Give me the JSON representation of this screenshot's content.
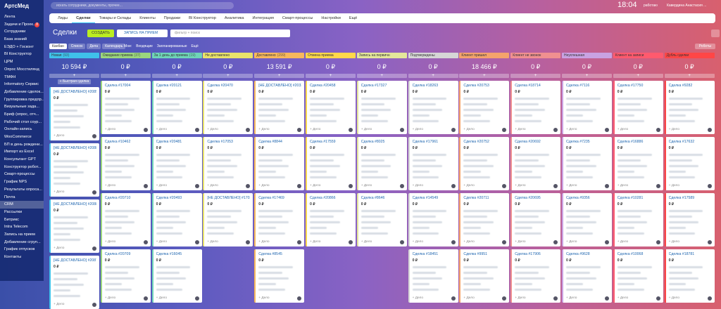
{
  "sidebar": {
    "logo": "АртсМед",
    "items": [
      {
        "label": "Лента"
      },
      {
        "label": "Задачи и Проек...",
        "badge": "8"
      },
      {
        "label": "Сотрудники"
      },
      {
        "label": "База знаний"
      },
      {
        "label": "ЕЭДО + Госконт"
      },
      {
        "label": "BI Конструктор"
      },
      {
        "label": "ЦРМ"
      },
      {
        "label": "Опрос Мосстилянд"
      },
      {
        "label": "ТМФН"
      },
      {
        "label": "Informatory Сервис"
      },
      {
        "label": "Добавление сделок..."
      },
      {
        "label": "Группировка предпр..."
      },
      {
        "label": "Визуальные зада..."
      },
      {
        "label": "Бриф (опрос, отч..."
      },
      {
        "label": "Рабочий стол соур..."
      },
      {
        "label": "Онлайн-запись"
      },
      {
        "label": "WooCommerce"
      },
      {
        "label": "БП в день рождени..."
      },
      {
        "label": "Импорт из Excel"
      },
      {
        "label": "Консультант GPT"
      },
      {
        "label": "Конструктор робот..."
      },
      {
        "label": "Смарт-процессы"
      },
      {
        "label": "График NPS"
      },
      {
        "label": "Результаты опроса..."
      },
      {
        "label": "Почта"
      },
      {
        "label": "CRM"
      },
      {
        "label": "Рассылки"
      },
      {
        "label": "Битрикс"
      },
      {
        "label": "Intra Telecom"
      },
      {
        "label": "Запись на прием"
      },
      {
        "label": "Добавление сгруп..."
      },
      {
        "label": "График отпусков"
      },
      {
        "label": "Контакты"
      }
    ]
  },
  "topbar": {
    "search": "искать сотрудники, документы, прочее...",
    "time": "18:04",
    "status": "работаю",
    "user": "Кавердина Анастасия ..."
  },
  "tabs": [
    "Лиды",
    "Сделки",
    "Товары и Склады",
    "Клиенты",
    "Продажи",
    "BI Конструктор",
    "Аналитика",
    "Интеграция",
    "Смарт-процессы",
    "Настройки",
    "Ещё"
  ],
  "toolbar": {
    "title": "Сделки",
    "create": "создать",
    "appointment": "запись на прием",
    "filter": "фильтр + поиск"
  },
  "views": [
    "Канбан",
    "Список",
    "Дела",
    "Календарь"
  ],
  "counters": {
    "label": "Мои:",
    "items": [
      "Входящие",
      "Запланированные",
      "Ещё"
    ]
  },
  "actions": [
    "Роботы"
  ],
  "quick_add": "+ Быстрая сделка",
  "card_action": "+ Дело",
  "columns": [
    {
      "name": "Новая",
      "count": "(93)",
      "color": "#3fc1ea",
      "sum": "10 594 ₽",
      "cards": [
        {
          "title": "[НЕ ДОСТАВЛЕНО] #20892",
          "amount": "0 ₽"
        },
        {
          "title": "[НЕ ДОСТАВЛЕНО] #20884",
          "amount": "0 ₽"
        },
        {
          "title": "[НЕ ДОСТАВЛЕНО] #20882",
          "amount": "0 ₽"
        },
        {
          "title": "[НЕ ДОСТАВЛЕНО] #20875",
          "amount": "0 ₽"
        }
      ]
    },
    {
      "name": "Ожидание приема",
      "count": "(37)",
      "color": "#9bd67e",
      "sum": "0 ₽",
      "cards": [
        {
          "title": "Сделка #17004",
          "amount": "0 ₽"
        },
        {
          "title": "Сделка #10462",
          "amount": "0 ₽"
        },
        {
          "title": "Сделка #20710",
          "amount": "0 ₽"
        },
        {
          "title": "Сделка #20709",
          "amount": "0 ₽"
        }
      ]
    },
    {
      "name": "За 1 день до приема",
      "count": "(19)",
      "color": "#6fd5b8",
      "sum": "0 ₽",
      "cards": [
        {
          "title": "Сделка #20121",
          "amount": "0 ₽"
        },
        {
          "title": "Сделка #20481",
          "amount": "0 ₽"
        },
        {
          "title": "Сделка #20493",
          "amount": "0 ₽"
        },
        {
          "title": "Сделка #16045",
          "amount": "0 ₽"
        }
      ]
    },
    {
      "name": "Не доставлено",
      "color": "#e9e36a",
      "sum": "0 ₽",
      "cards": [
        {
          "title": "Сделка #20470",
          "amount": "0 ₽"
        },
        {
          "title": "Сделка #17053",
          "amount": "0 ₽"
        },
        {
          "title": "[НЕ ДОСТАВЛЕНО] #17028",
          "amount": "0 ₽"
        }
      ]
    },
    {
      "name": "Доставлено",
      "count": "(299)",
      "color": "#f7b85c",
      "sum": "13 591 ₽",
      "cards": [
        {
          "title": "[НЕ ДОСТАВЛЕНО] #20333",
          "amount": "0 ₽"
        },
        {
          "title": "Сделка #8844",
          "amount": "0 ₽"
        },
        {
          "title": "Сделка #17469",
          "amount": "0 ₽"
        },
        {
          "title": "Сделка #8545",
          "amount": "0 ₽"
        }
      ]
    },
    {
      "name": "Отмена приема",
      "color": "#ffd84a",
      "sum": "0 ₽",
      "cards": [
        {
          "title": "Сделка #20458",
          "amount": "0 ₽"
        },
        {
          "title": "Сделка #17559",
          "amount": "0 ₽"
        },
        {
          "title": "Сделка #20866",
          "amount": "0 ₽"
        }
      ]
    },
    {
      "name": "Запись на первичн",
      "color": "#e4e69a",
      "sum": "0 ₽",
      "cards": [
        {
          "title": "Сделка #17327",
          "amount": "0 ₽"
        },
        {
          "title": "Сделка #8025",
          "amount": "0 ₽"
        },
        {
          "title": "Сделка #8646",
          "amount": "0 ₽"
        }
      ]
    },
    {
      "name": "Подтверждены",
      "color": "#d6d6d6",
      "sum": "0 ₽",
      "cards": [
        {
          "title": "Сделка #18263",
          "amount": "0 ₽"
        },
        {
          "title": "Сделка #17961",
          "amount": "0 ₽"
        },
        {
          "title": "Сделка #14549",
          "amount": "0 ₽"
        },
        {
          "title": "Сделка #18451",
          "amount": "0 ₽"
        }
      ]
    },
    {
      "name": "Клиент пришел",
      "color": "#f4a36c",
      "sum": "18 466 ₽",
      "cards": [
        {
          "title": "Сделка #20753",
          "amount": "0 ₽"
        },
        {
          "title": "Сделка #20752",
          "amount": "0 ₽"
        },
        {
          "title": "Сделка #20711",
          "amount": "0 ₽"
        },
        {
          "title": "Сделка #9951",
          "amount": "0 ₽"
        }
      ]
    },
    {
      "name": "Клиент не звонок",
      "color": "#f09090",
      "sum": "0 ₽",
      "cards": [
        {
          "title": "Сделка #18714",
          "amount": "0 ₽"
        },
        {
          "title": "Сделка #20692",
          "amount": "0 ₽"
        },
        {
          "title": "Сделка #20695",
          "amount": "0 ₽"
        },
        {
          "title": "Сделка #17906",
          "amount": "0 ₽"
        }
      ]
    },
    {
      "name": "Неуспешная",
      "color": "#c9a2e2",
      "sum": "0 ₽",
      "cards": [
        {
          "title": "Сделка #7116",
          "amount": "0 ₽"
        },
        {
          "title": "Сделка #7235",
          "amount": "0 ₽"
        },
        {
          "title": "Сделка #9356",
          "amount": "0 ₽"
        },
        {
          "title": "Сделка #9628",
          "amount": "0 ₽"
        }
      ]
    },
    {
      "name": "Клиент на записи",
      "color": "#ff5a6e",
      "sum": "0 ₽",
      "cards": [
        {
          "title": "Сделка #17750",
          "amount": "0 ₽"
        },
        {
          "title": "Сделка #16886",
          "amount": "0 ₽"
        },
        {
          "title": "Сделка #10281",
          "amount": "0 ₽"
        },
        {
          "title": "Сделка #10068",
          "amount": "0 ₽"
        }
      ]
    },
    {
      "name": "Дубль сделки",
      "color": "#ff4646",
      "sum": "0 ₽",
      "cards": [
        {
          "title": "Сделка #9282",
          "amount": "0 ₽"
        },
        {
          "title": "Сделка #17632",
          "amount": "0 ₽"
        },
        {
          "title": "Сделка #17589",
          "amount": "0 ₽"
        },
        {
          "title": "Сделка #18781",
          "amount": "0 ₽"
        }
      ]
    }
  ]
}
